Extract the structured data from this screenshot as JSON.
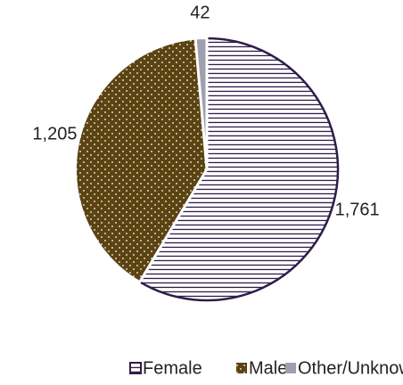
{
  "chart_data": {
    "type": "pie",
    "categories": [
      "Female",
      "Male",
      "Other/Unknown"
    ],
    "values": [
      1761,
      1205,
      42
    ],
    "value_labels": [
      "1,761",
      "1,205",
      "42"
    ],
    "colors": [
      "#2e1d4a",
      "#5b4312",
      "#a09fae"
    ],
    "legend": "bottom"
  }
}
